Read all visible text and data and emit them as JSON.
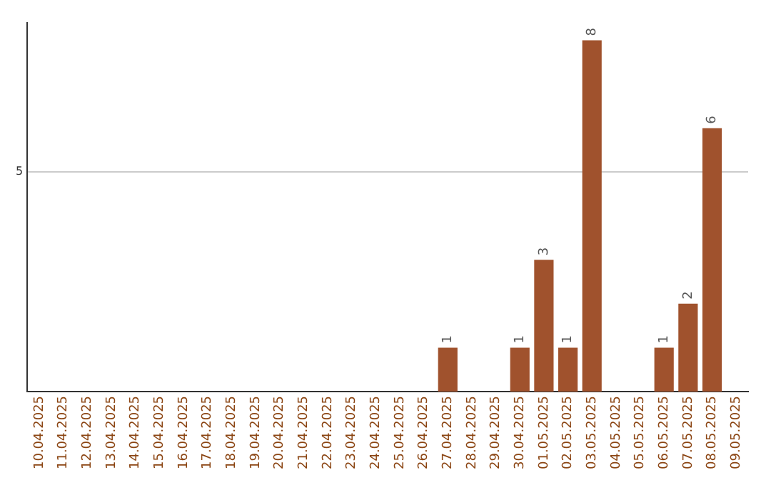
{
  "chart_data": {
    "type": "bar",
    "categories": [
      "10.04.2025",
      "11.04.2025",
      "12.04.2025",
      "13.04.2025",
      "14.04.2025",
      "15.04.2025",
      "16.04.2025",
      "17.04.2025",
      "18.04.2025",
      "19.04.2025",
      "20.04.2025",
      "21.04.2025",
      "22.04.2025",
      "23.04.2025",
      "24.04.2025",
      "25.04.2025",
      "26.04.2025",
      "27.04.2025",
      "28.04.2025",
      "29.04.2025",
      "30.04.2025",
      "01.05.2025",
      "02.05.2025",
      "03.05.2025",
      "04.05.2025",
      "05.05.2025",
      "06.05.2025",
      "07.05.2025",
      "08.05.2025",
      "09.05.2025"
    ],
    "values": [
      null,
      null,
      null,
      null,
      null,
      null,
      null,
      null,
      null,
      null,
      null,
      null,
      null,
      null,
      null,
      null,
      null,
      1,
      null,
      null,
      1,
      3,
      1,
      8,
      null,
      null,
      1,
      2,
      6,
      null
    ],
    "color": "#a0522d",
    "ylim": [
      0,
      8.4
    ],
    "yticks": [
      5
    ],
    "grid": "y",
    "data_labels": true,
    "legend": false
  }
}
